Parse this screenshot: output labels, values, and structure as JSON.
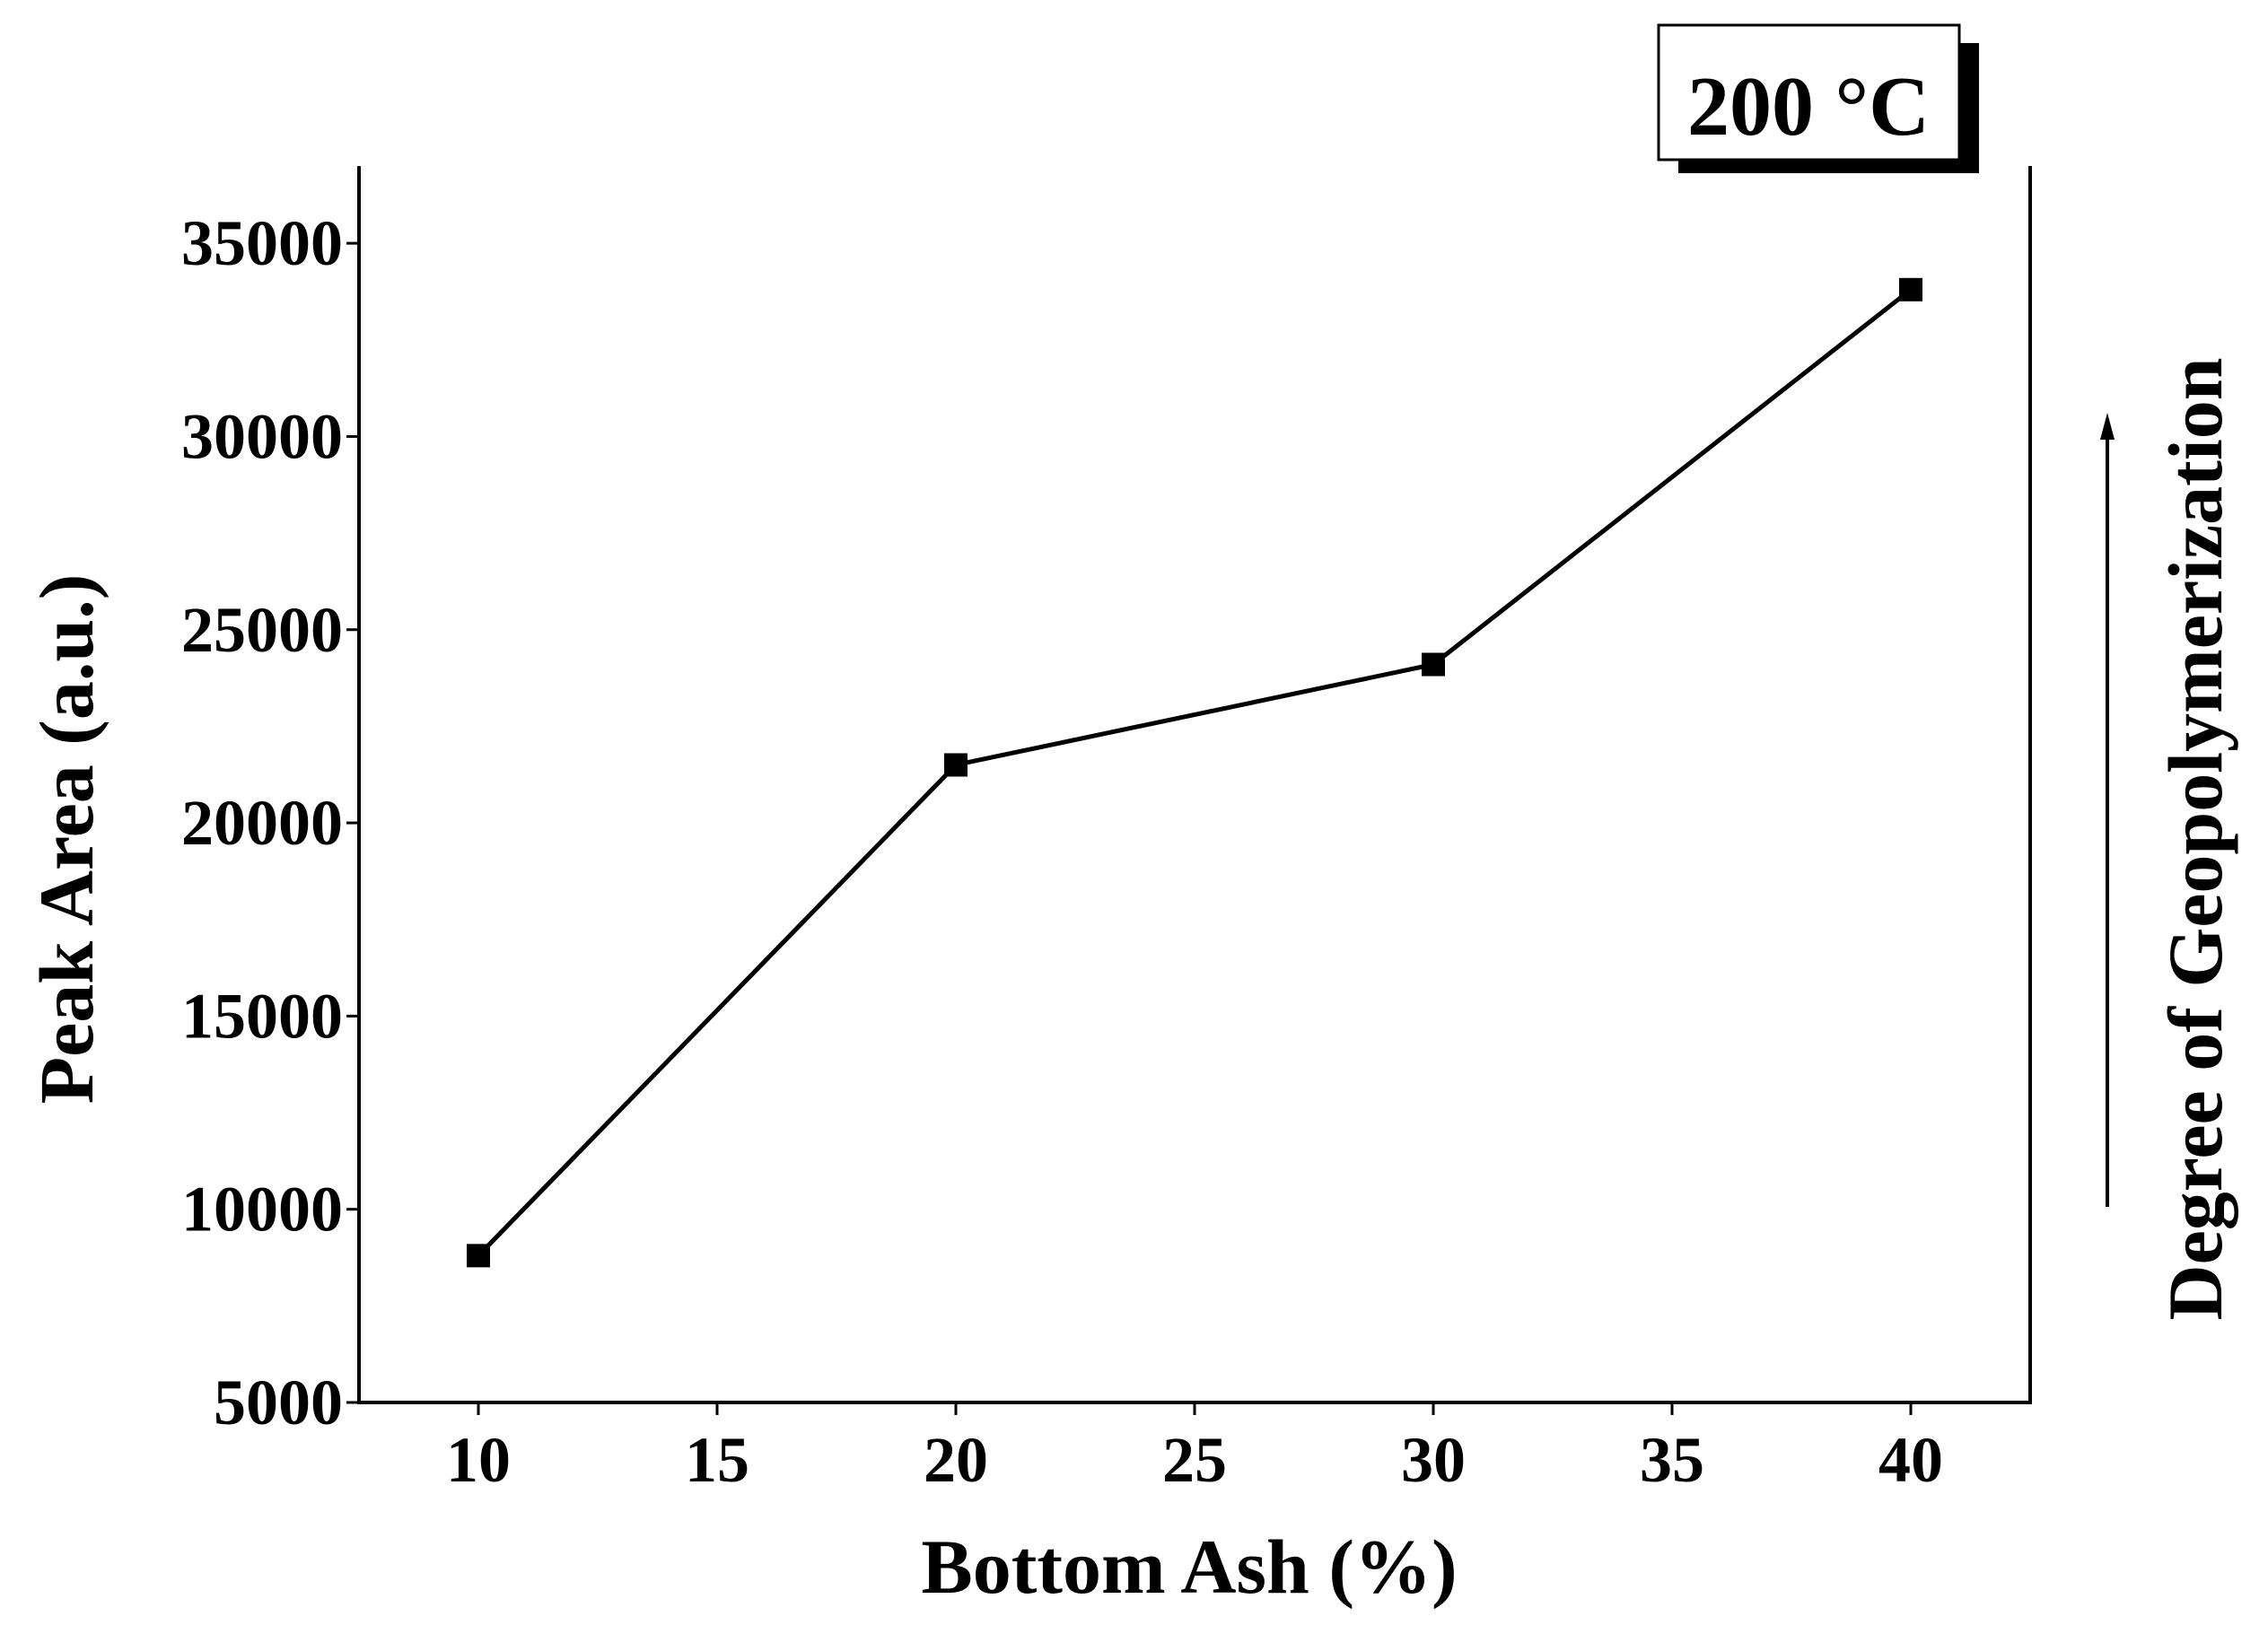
{
  "chart_data": {
    "type": "line",
    "title": "",
    "xlabel": "Bottom Ash (%)",
    "ylabel": "Peak Area (a.u.)",
    "x": [
      10,
      20,
      30,
      40
    ],
    "series": [
      {
        "values": [
          8800,
          21500,
          24100,
          33800
        ],
        "marker": "square",
        "color": "#000000"
      }
    ],
    "xlim": [
      7.5,
      42.5
    ],
    "ylim": [
      5000,
      37000
    ],
    "xticks": [
      10,
      15,
      20,
      25,
      30,
      35,
      40
    ],
    "yticks": [
      5000,
      10000,
      15000,
      20000,
      25000,
      30000,
      35000
    ],
    "grid": false,
    "legend": "none",
    "annotations": {
      "temperature_label": "200 °C",
      "side_label": "Degree of Geopolymerization"
    }
  }
}
